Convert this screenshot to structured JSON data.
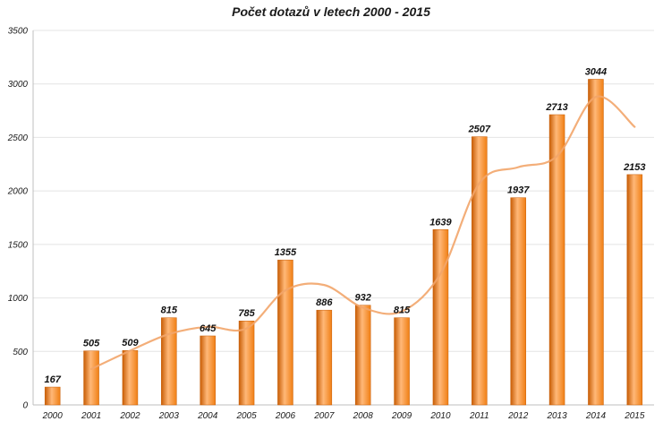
{
  "chart_data": {
    "type": "bar",
    "title": "Počet dotazů v letech 2000 - 2015",
    "xlabel": "",
    "ylabel": "",
    "categories": [
      "2000",
      "2001",
      "2002",
      "2003",
      "2004",
      "2005",
      "2006",
      "2007",
      "2008",
      "2009",
      "2010",
      "2011",
      "2012",
      "2013",
      "2014",
      "2015"
    ],
    "values": [
      167,
      505,
      509,
      815,
      645,
      785,
      1355,
      886,
      932,
      815,
      1639,
      2507,
      1937,
      2713,
      3044,
      2153
    ],
    "ylim": [
      0,
      3500
    ],
    "yticks": [
      0,
      500,
      1000,
      1500,
      2000,
      2500,
      3000,
      3500
    ],
    "grid": true,
    "legend": "none",
    "data_labels": true,
    "trendline": {
      "type": "2-period moving average",
      "values": [
        336,
        507,
        662,
        730,
        715,
        1070,
        1121,
        909,
        874,
        1227,
        2073,
        2222,
        2325,
        2879,
        2599
      ]
    },
    "colors": {
      "bar": "#f07f14",
      "bar_light": "#ffb878",
      "bar_dark": "#c85d05",
      "trendline": "#f2a56a",
      "grid": "#e4e4e4",
      "axis": "#bfbfbf"
    }
  }
}
